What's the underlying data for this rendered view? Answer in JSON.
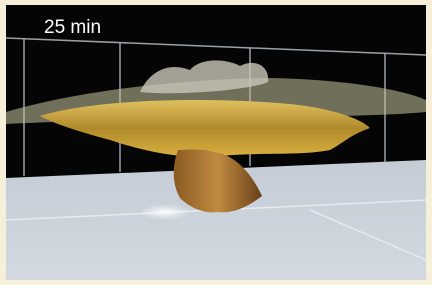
{
  "label": "25 min"
}
